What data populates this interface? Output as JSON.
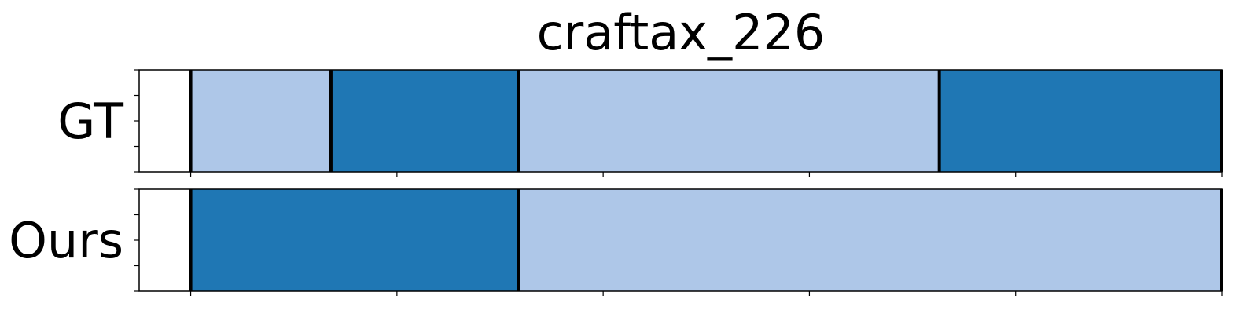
{
  "chart_data": {
    "type": "bar",
    "title": "craftax_226",
    "rows": [
      {
        "label": "GT",
        "segments": [
          {
            "start": 0,
            "end": 68,
            "class": "light"
          },
          {
            "start": 68,
            "end": 159,
            "class": "dark"
          },
          {
            "start": 159,
            "end": 363,
            "class": "light"
          },
          {
            "start": 363,
            "end": 500,
            "class": "dark"
          }
        ]
      },
      {
        "label": "Ours",
        "segments": [
          {
            "start": 0,
            "end": 159,
            "class": "dark"
          },
          {
            "start": 159,
            "end": 500,
            "class": "light"
          }
        ]
      }
    ],
    "xlim": [
      -25,
      500
    ],
    "xticks": [
      0,
      100,
      200,
      300,
      400,
      500
    ],
    "tick_labels_shown": false,
    "colors": {
      "light": "#aec7e8",
      "dark": "#1f77b4",
      "boundary": "#000000"
    },
    "grid": false,
    "legend": "none"
  }
}
